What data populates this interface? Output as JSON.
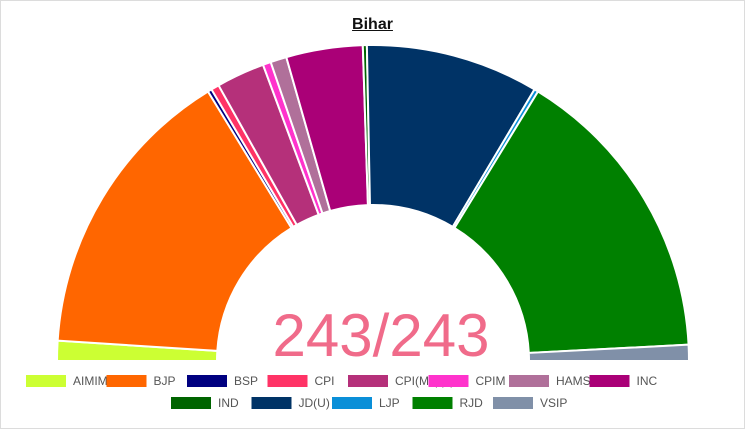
{
  "chart_data": {
    "type": "pie",
    "subtype": "parliament-semicircle",
    "title": "Bihar",
    "center_label": "243/243",
    "total_seats": 243,
    "categories": [
      "AIMIM",
      "BJP",
      "BSP",
      "CPI",
      "CPI(ML)(L)",
      "CPIM",
      "HAMS",
      "INC",
      "IND",
      "JD(U)",
      "LJP",
      "RJD",
      "VSIP"
    ],
    "values": [
      5,
      74,
      1,
      2,
      12,
      2,
      4,
      19,
      1,
      43,
      1,
      75,
      4
    ],
    "colors": [
      "#ccff33",
      "#ff6600",
      "#000080",
      "#ff3366",
      "#b5307a",
      "#ff33cc",
      "#b0709a",
      "#aa0077",
      "#006400",
      "#003366",
      "#0a8fd8",
      "#008000",
      "#8090a8"
    ],
    "legend": "bottom"
  }
}
